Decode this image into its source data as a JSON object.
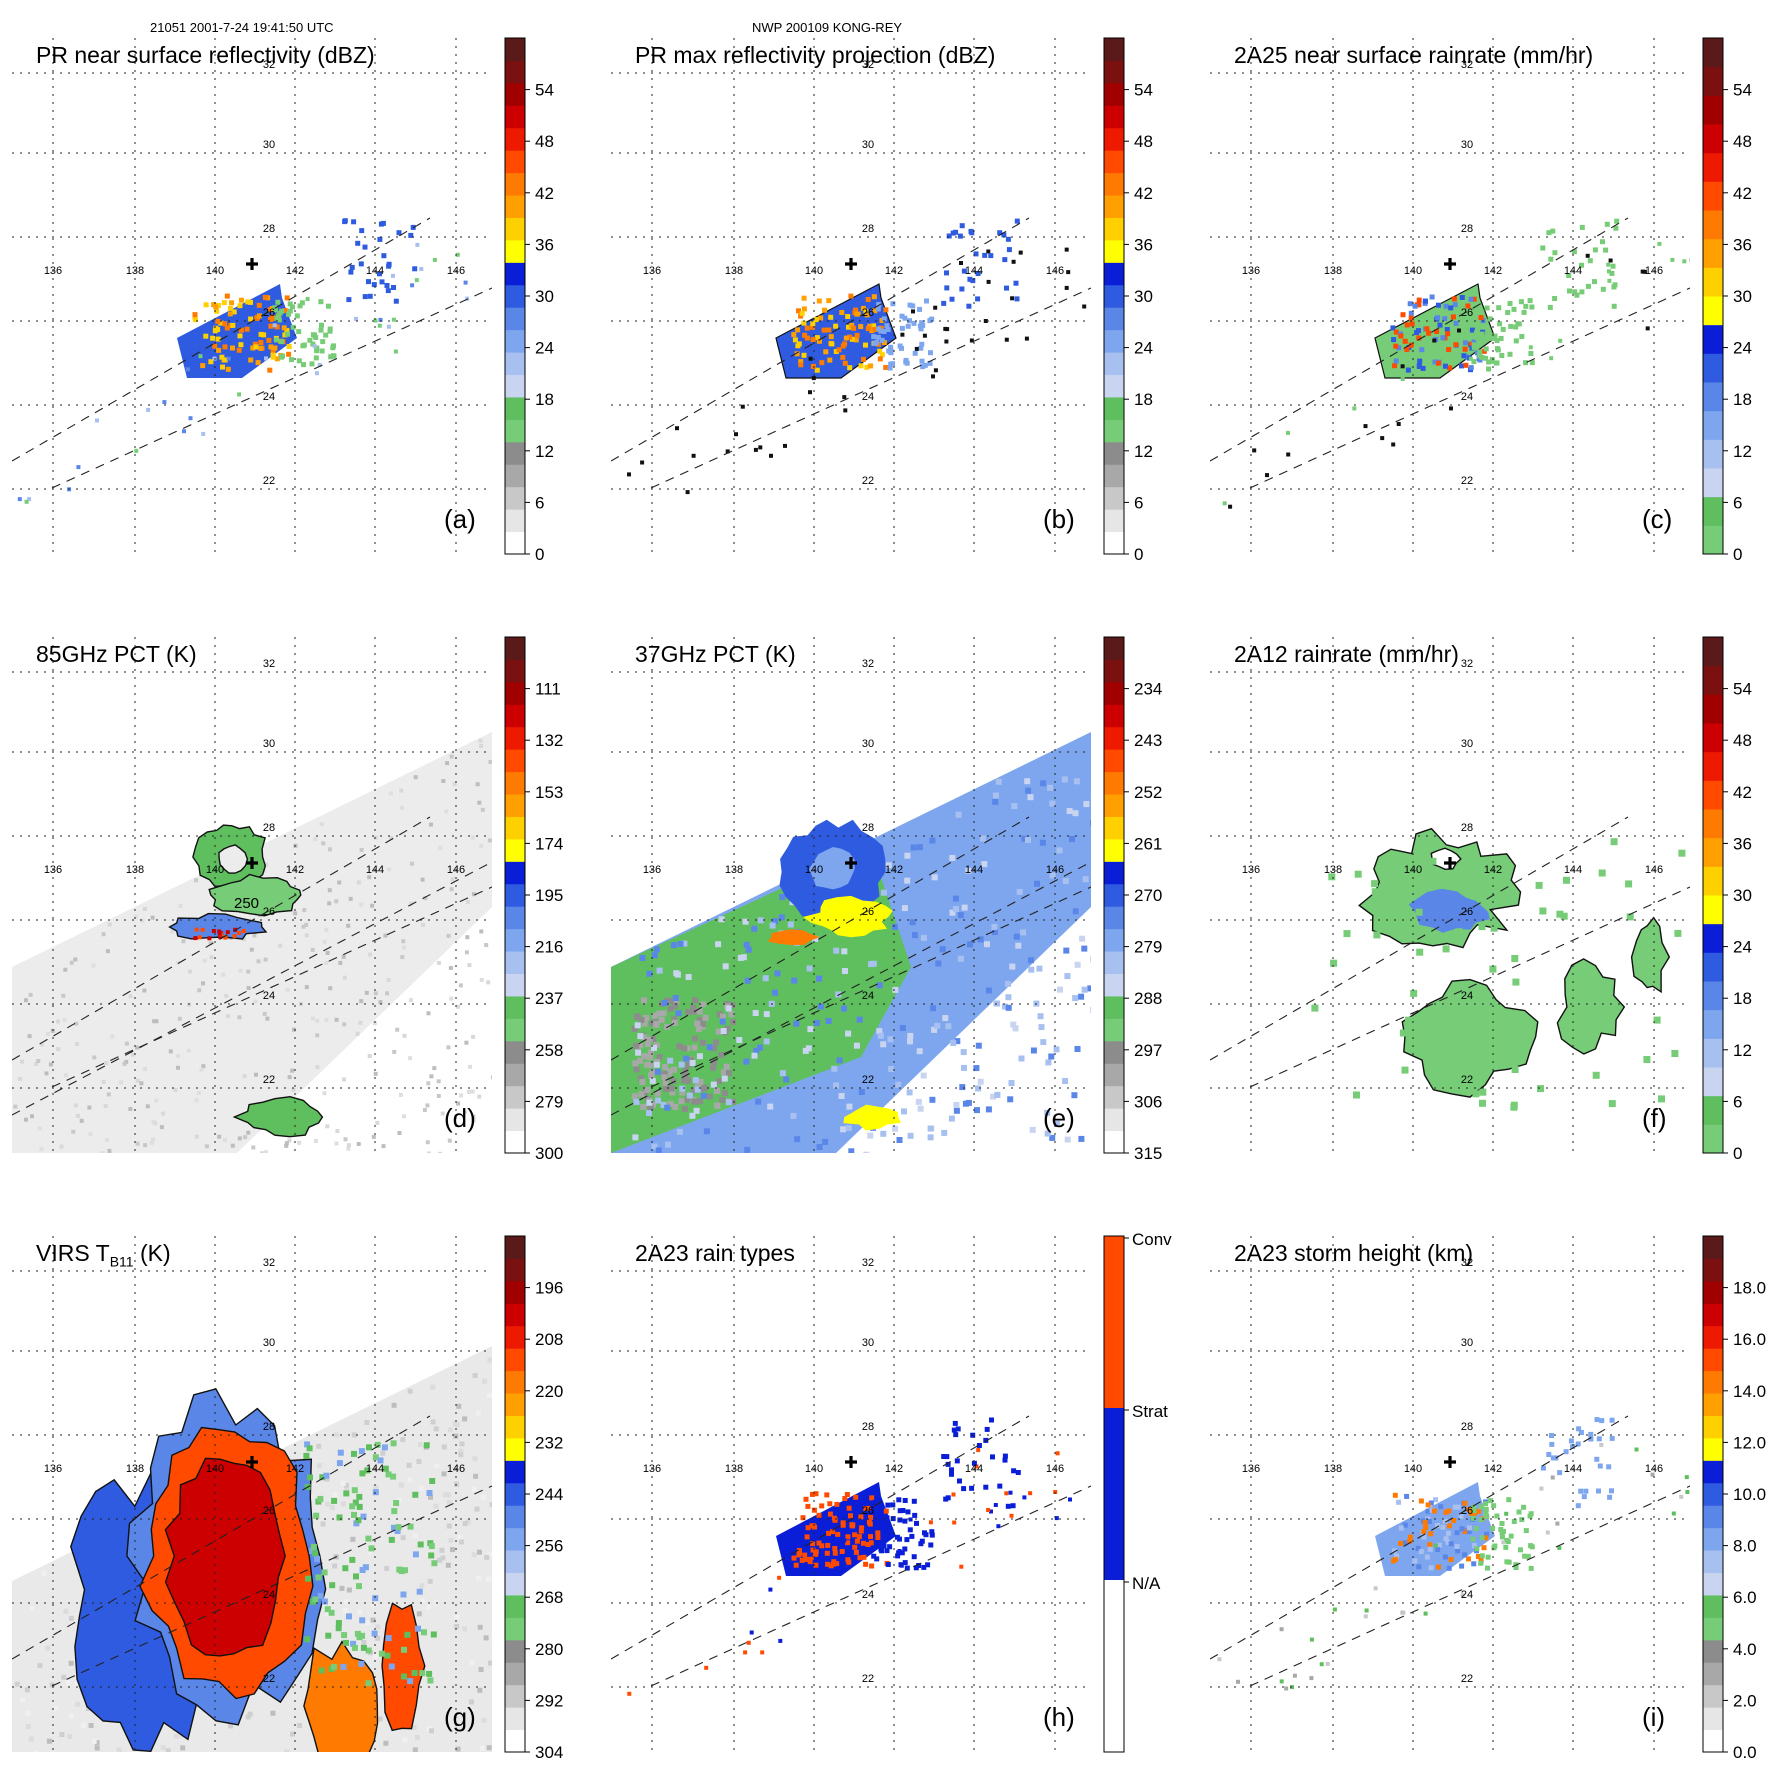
{
  "header": {
    "left": "21051 2001-7-24 19:41:50 UTC",
    "center": "NWP 200109 KONG-REY"
  },
  "map": {
    "lon_ticks": [
      "136",
      "138",
      "140",
      "142",
      "144",
      "146"
    ],
    "lat_ticks": [
      "32",
      "30",
      "28",
      "26",
      "24",
      "22"
    ],
    "center_marker": "cross-marker"
  },
  "panels": [
    {
      "id": "a",
      "letter": "(a)",
      "title": "PR near surface reflectivity (dBZ)",
      "colorbar": {
        "type": "continuous",
        "labels": [
          "54",
          "48",
          "42",
          "36",
          "30",
          "24",
          "18",
          "12",
          "6",
          "0"
        ]
      }
    },
    {
      "id": "b",
      "letter": "(b)",
      "title": "PR max reflectivity projection (dBZ)",
      "colorbar": {
        "type": "continuous",
        "labels": [
          "54",
          "48",
          "42",
          "36",
          "30",
          "24",
          "18",
          "12",
          "6",
          "0"
        ]
      }
    },
    {
      "id": "c",
      "letter": "(c)",
      "title": "2A25 near surface rainrate (mm/hr)",
      "colorbar": {
        "type": "continuous",
        "labels": [
          "54",
          "48",
          "42",
          "36",
          "30",
          "24",
          "18",
          "12",
          "6",
          "0"
        ]
      }
    },
    {
      "id": "d",
      "letter": "(d)",
      "title": "85GHz PCT (K)",
      "contour_label": "250",
      "colorbar": {
        "type": "continuous",
        "labels": [
          "111",
          "132",
          "153",
          "174",
          "195",
          "216",
          "237",
          "258",
          "279",
          "300"
        ]
      }
    },
    {
      "id": "e",
      "letter": "(e)",
      "title": "37GHz PCT (K)",
      "colorbar": {
        "type": "continuous",
        "labels": [
          "234",
          "243",
          "252",
          "261",
          "270",
          "279",
          "288",
          "297",
          "306",
          "315"
        ]
      }
    },
    {
      "id": "f",
      "letter": "(f)",
      "title": "2A12 rainrate (mm/hr)",
      "colorbar": {
        "type": "continuous",
        "labels": [
          "54",
          "48",
          "42",
          "36",
          "30",
          "24",
          "18",
          "12",
          "6",
          "0"
        ]
      }
    },
    {
      "id": "g",
      "letter": "(g)",
      "title": "VIRS T",
      "title_sub": "B11",
      "title_suffix": " (K)",
      "colorbar": {
        "type": "continuous",
        "labels": [
          "196",
          "208",
          "220",
          "232",
          "244",
          "256",
          "268",
          "280",
          "292",
          "304"
        ]
      }
    },
    {
      "id": "h",
      "letter": "(h)",
      "title": "2A23 rain types",
      "colorbar": {
        "type": "categorical",
        "labels": [
          "Conv",
          "Strat",
          "N/A"
        ]
      }
    },
    {
      "id": "i",
      "letter": "(i)",
      "title": "2A23 storm height (km)",
      "colorbar": {
        "type": "continuous",
        "labels": [
          "18.0",
          "16.0",
          "14.0",
          "12.0",
          "10.0",
          "8.0",
          "6.0",
          "4.0",
          "2.0",
          "0.0"
        ]
      }
    }
  ],
  "colors": {
    "cbar_standard": [
      "#ffffff",
      "#e6e6e6",
      "#c8c8c8",
      "#a8a8a8",
      "#8c8c8c",
      "#77cc77",
      "#5fbf5f",
      "#c8d4f0",
      "#a8c0f0",
      "#7ea6ee",
      "#5a86e8",
      "#2f5be0",
      "#0a1ed8",
      "#ffff00",
      "#ffd000",
      "#ffa000",
      "#ff7a00",
      "#ff4a00",
      "#ee1a00",
      "#cc0000",
      "#a00000",
      "#7a1010",
      "#5a1a1a"
    ],
    "cbar_rain": [
      "#77cc77",
      "#5fbf5f",
      "#c8d4f0",
      "#a8c0f0",
      "#7ea6ee",
      "#5a86e8",
      "#2f5be0",
      "#0a1ed8",
      "#ffff00",
      "#ffd000",
      "#ffa000",
      "#ff7a00",
      "#ff4a00",
      "#ee1a00",
      "#cc0000",
      "#a00000",
      "#7a1010",
      "#5a1a1a"
    ],
    "cbar_types": [
      "#ffffff",
      "#0a1ed8",
      "#ff4a00"
    ]
  }
}
